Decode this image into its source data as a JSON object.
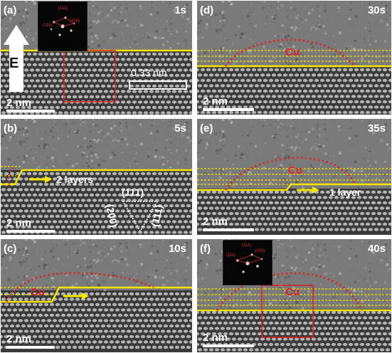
{
  "panels": [
    {
      "label": "(a)",
      "time": "1s",
      "scale": "2 nm"
    },
    {
      "label": "(b)",
      "time": "5s",
      "scale": "2 nm"
    },
    {
      "label": "(c)",
      "time": "10s",
      "scale": "2 nm"
    },
    {
      "label": "(d)",
      "time": "30s",
      "scale": "2 nm"
    },
    {
      "label": "(e)",
      "time": "35s",
      "scale": "2 nm"
    },
    {
      "label": "(f)",
      "time": "40s",
      "scale": "2 nm"
    }
  ],
  "annotations": {
    "field_label": "E",
    "lattice_spacing": "0.33 nm",
    "step_b": "2 layers",
    "step_e": "1 layer",
    "cu": "Cu",
    "planes": [
      "(111)",
      "(200)",
      "(111)"
    ]
  },
  "fft_inset": {
    "spots": [
      "(111)",
      "(111)",
      "(200)"
    ]
  },
  "colors": {
    "interface_line": "#f5e600",
    "particle_outline": "#e02020",
    "box": "#e02020",
    "text": "#ffffff"
  }
}
